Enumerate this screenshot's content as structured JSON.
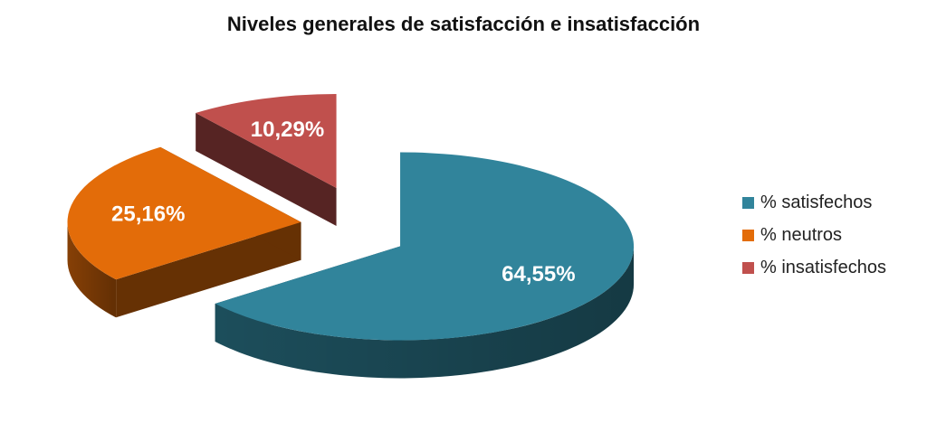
{
  "chart_data": {
    "type": "pie",
    "title": "Niveles generales de satisfacción e insatisfacción",
    "legend_position": "right",
    "series": [
      {
        "name": "% satisfechos",
        "value": 64.55,
        "label": "64,55%",
        "color": "#31849b"
      },
      {
        "name": "% neutros",
        "value": 25.16,
        "label": "25,16%",
        "color": "#e36c09"
      },
      {
        "name": "% insatisfechos",
        "value": 10.29,
        "label": "10,29%",
        "color": "#c0504d"
      }
    ]
  }
}
